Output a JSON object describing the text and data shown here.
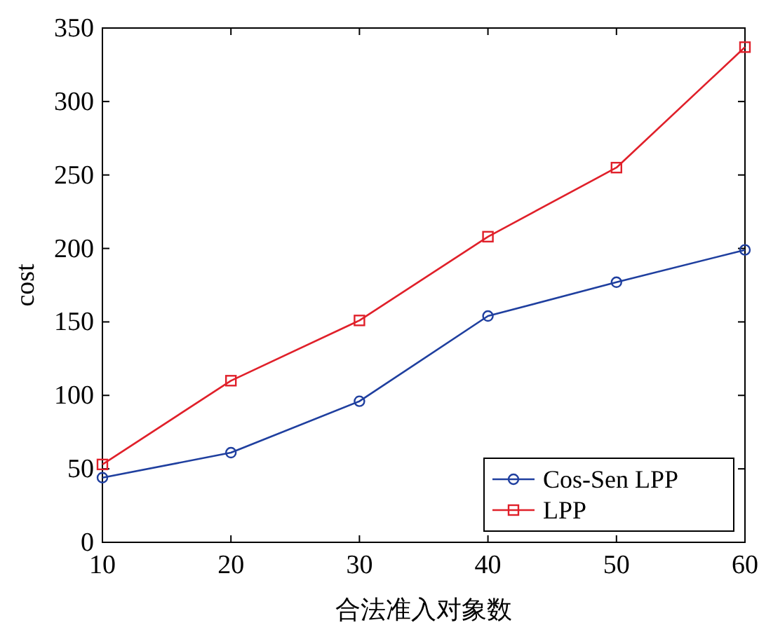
{
  "chart_data": {
    "type": "line",
    "xlabel": "合法准入对象数",
    "ylabel": "cost",
    "x": [
      10,
      20,
      30,
      40,
      50,
      60
    ],
    "series": [
      {
        "name": "Cos-Sen LPP",
        "color": "#1f3f9f",
        "marker": "circle",
        "values": [
          44,
          61,
          96,
          154,
          177,
          199
        ]
      },
      {
        "name": "LPP",
        "color": "#e0202a",
        "marker": "square",
        "values": [
          53,
          110,
          151,
          208,
          255,
          337
        ]
      }
    ],
    "xlim": [
      10,
      60
    ],
    "ylim": [
      0,
      350
    ],
    "xticks": [
      10,
      20,
      30,
      40,
      50,
      60
    ],
    "yticks": [
      0,
      50,
      100,
      150,
      200,
      250,
      300,
      350
    ],
    "legend": "bottom right"
  }
}
